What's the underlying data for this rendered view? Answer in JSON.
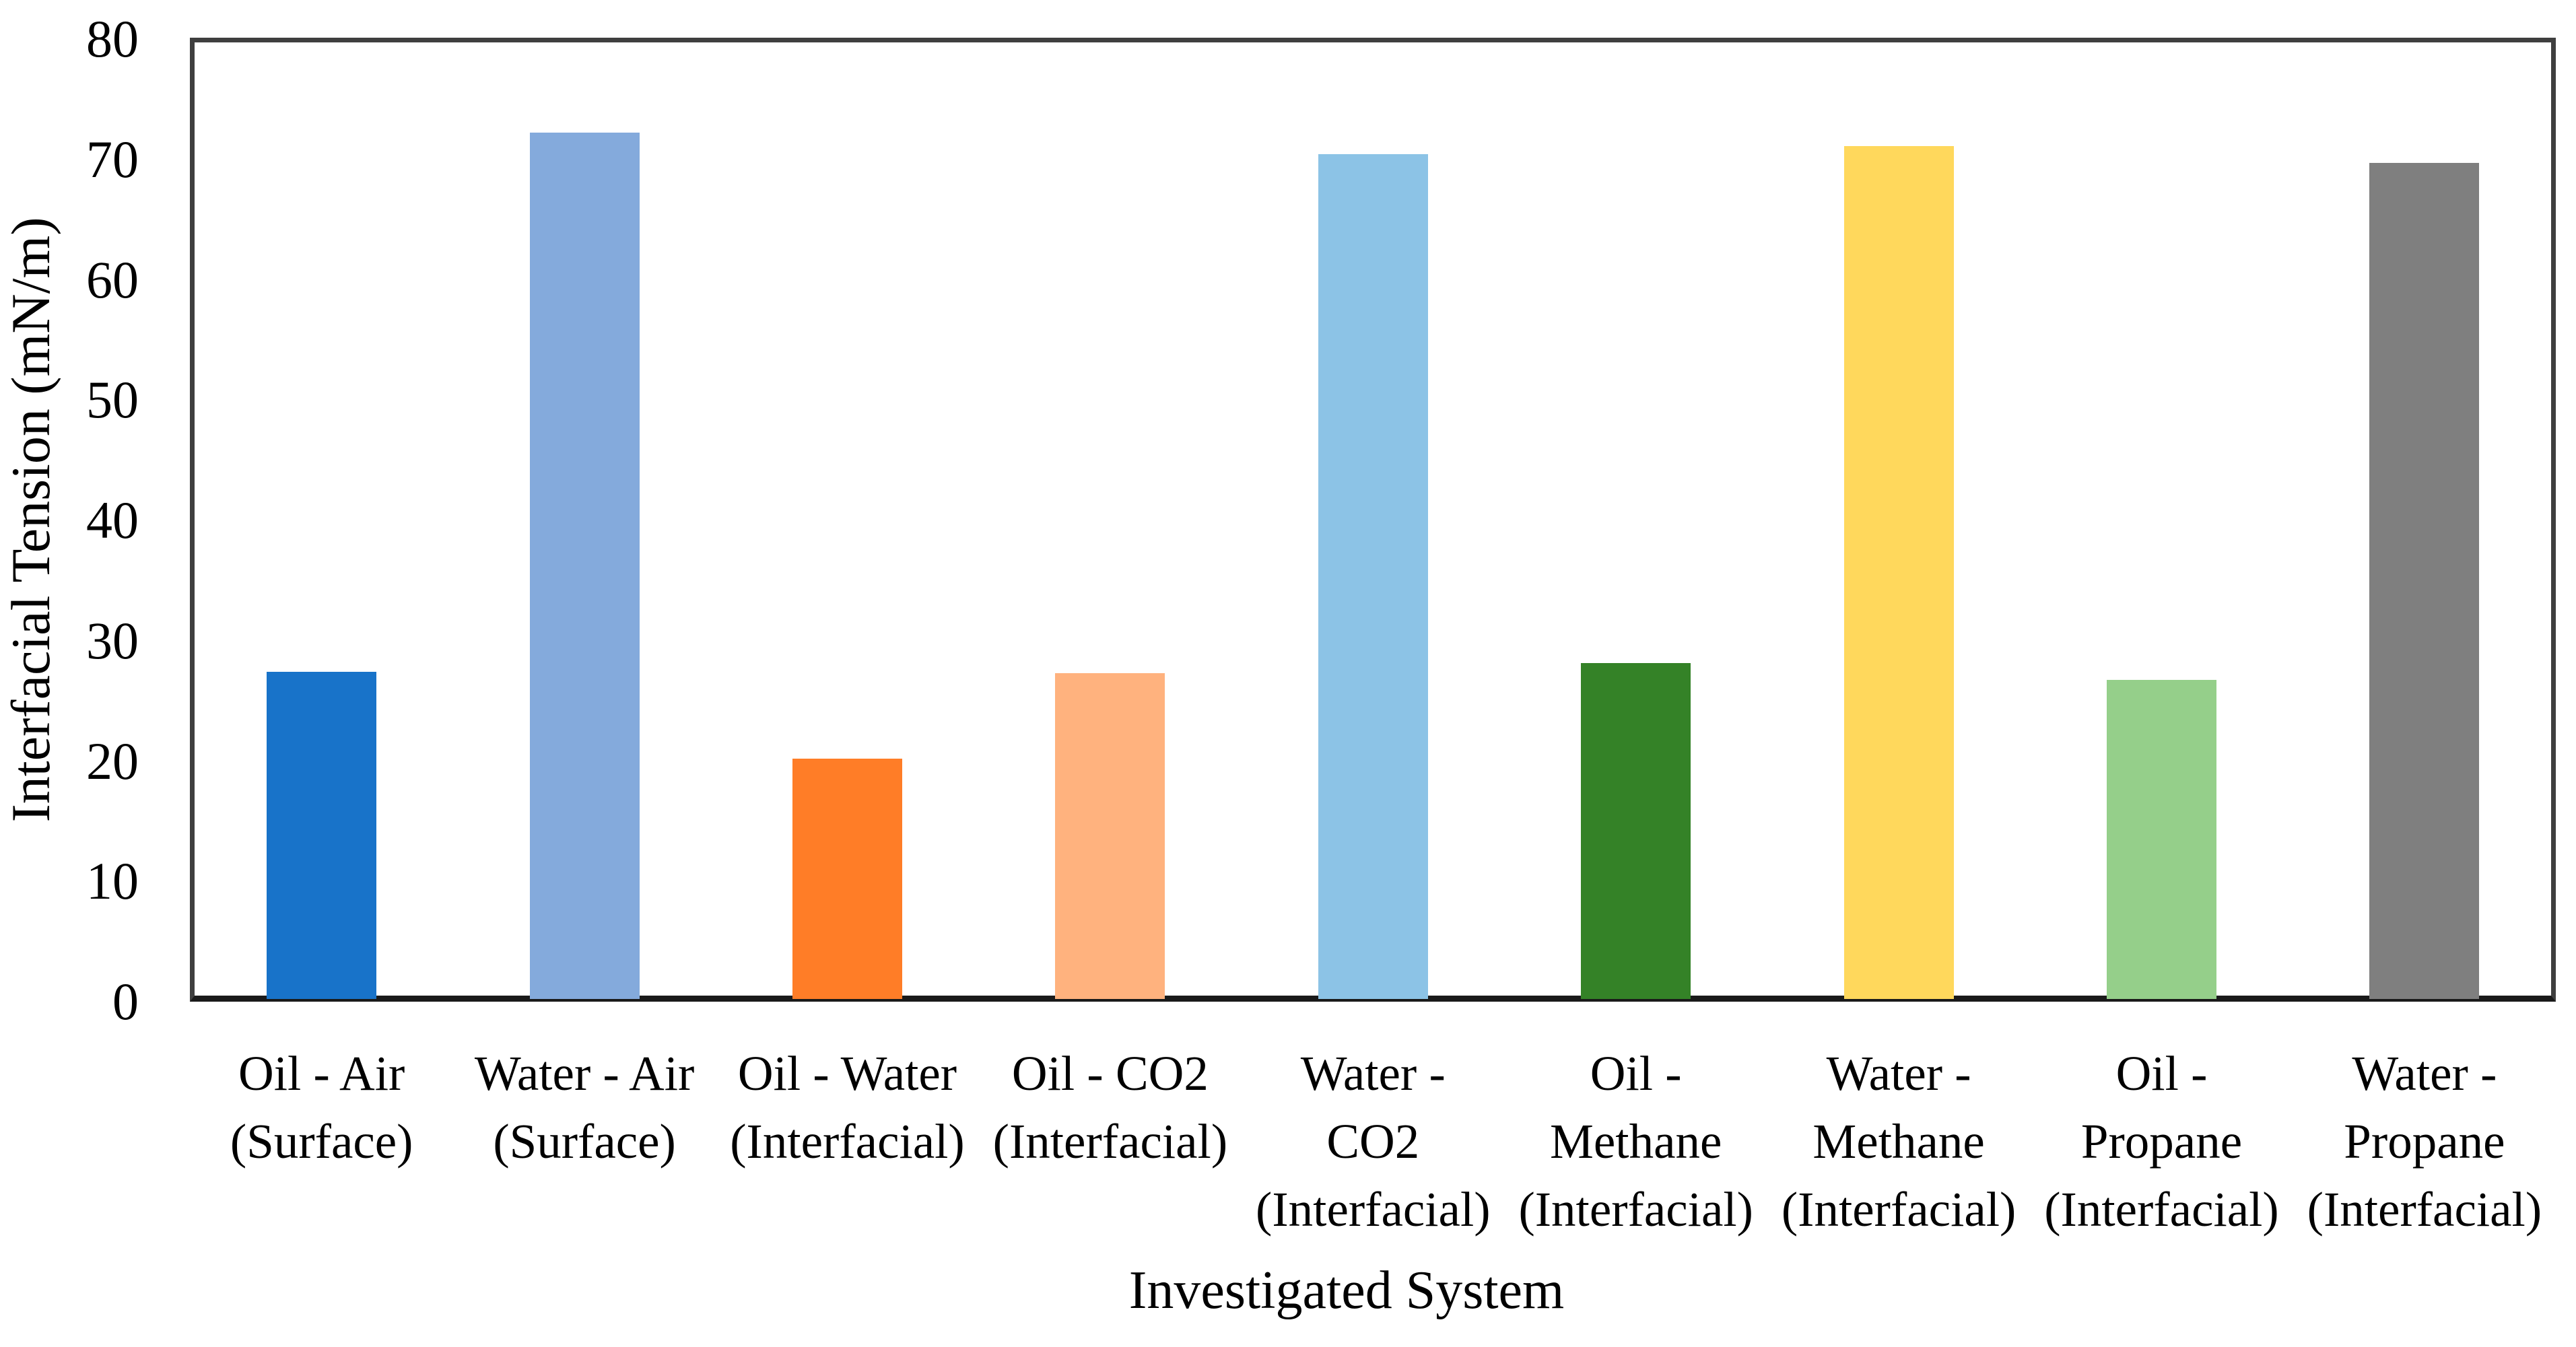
{
  "chart_data": {
    "type": "bar",
    "title": "",
    "xlabel": "Investigated System",
    "ylabel": "Interfacial Tension (mN/m)",
    "ylim": [
      0,
      80
    ],
    "ytick_step": 10,
    "yticks": [
      0,
      10,
      20,
      30,
      40,
      50,
      60,
      70,
      80
    ],
    "grid": false,
    "legend_position": "none",
    "categories": [
      "Oil - Air (Surface)",
      "Water - Air (Surface)",
      "Oil - Water (Interfacial)",
      "Oil - CO2 (Interfacial)",
      "Water - CO2 (Interfacial)",
      "Oil - Methane (Interfacial)",
      "Water - Methane (Interfacial)",
      "Oil - Propane (Interfacial)",
      "Water - Propane (Interfacial)"
    ],
    "category_label_lines": [
      [
        "Oil - Air",
        "(Surface)"
      ],
      [
        "Water - Air",
        "(Surface)"
      ],
      [
        "Oil - Water",
        "(Interfacial)"
      ],
      [
        "Oil - CO2",
        "(Interfacial)"
      ],
      [
        "Water -",
        "CO2",
        "(Interfacial)"
      ],
      [
        "Oil -",
        "Methane",
        "(Interfacial)"
      ],
      [
        "Water -",
        "Methane",
        "(Interfacial)"
      ],
      [
        "Oil -",
        "Propane",
        "(Interfacial)"
      ],
      [
        "Water -",
        "Propane",
        "(Interfacial)"
      ]
    ],
    "values": [
      27.2,
      72,
      20,
      27.1,
      70.2,
      27.9,
      70.9,
      26.5,
      69.5
    ],
    "bar_colors": [
      "#1873C9",
      "#84AADC",
      "#FF7D27",
      "#FFB27E",
      "#8CC3E6",
      "#348227",
      "#FFD85C",
      "#95CF8A",
      "#7F7F7F"
    ],
    "colors": {
      "frame": "#3f3f3f",
      "baseline": "#1a1a1a",
      "background": "#ffffff",
      "text": "#000000"
    }
  }
}
